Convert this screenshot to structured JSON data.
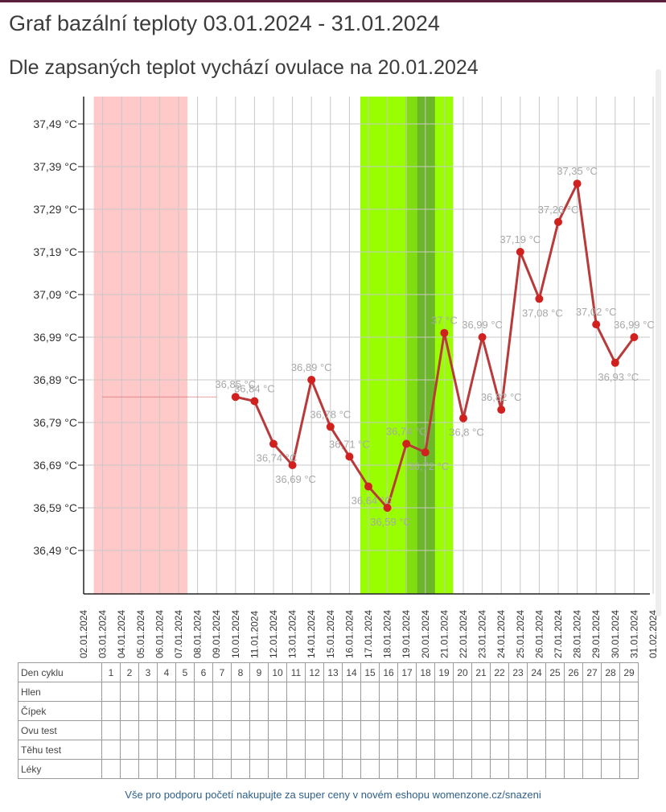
{
  "page": {
    "title": "Graf bazální teploty 03.01.2024 - 31.01.2024",
    "subtitle": "Dle zapsaných teplot vychází ovulace na 20.01.2024",
    "footer_link": "Vše pro podporu početí nakupujte za super ceny v novém eshopu womenzone.cz/snazeni"
  },
  "colors": {
    "line": "#b83a3a",
    "point": "#d0211f",
    "label": "#a8a8a8",
    "grid": "#c8c8c8",
    "axis": "#222222",
    "menstruation_band": "#ffc9c9",
    "fertile_band": "#99ff00",
    "fertile_core": "#80dd10",
    "ovulation_day": "#6cb62a",
    "ghost_line": "#cc4444"
  },
  "chart_data": {
    "type": "line",
    "title": "Graf bazální teploty 03.01.2024 - 31.01.2024",
    "x_dates": [
      "02.01.2024",
      "03.01.2024",
      "04.01.2024",
      "05.01.2024",
      "06.01.2024",
      "07.01.2024",
      "08.01.2024",
      "09.01.2024",
      "10.01.2024",
      "11.01.2024",
      "12.01.2024",
      "13.01.2024",
      "14.01.2024",
      "15.01.2024",
      "16.01.2024",
      "17.01.2024",
      "18.01.2024",
      "19.01.2024",
      "20.01.2024",
      "21.01.2024",
      "22.01.2024",
      "23.01.2024",
      "24.01.2024",
      "25.01.2024",
      "26.01.2024",
      "27.01.2024",
      "28.01.2024",
      "29.01.2024",
      "30.01.2024",
      "31.01.2024",
      "01.02.2024"
    ],
    "y_ticks": [
      "37,49 °C",
      "37,39 °C",
      "37,29 °C",
      "37,19 °C",
      "37,09 °C",
      "36,99 °C",
      "36,89 °C",
      "36,79 °C",
      "36,69 °C",
      "36,59 °C",
      "36,49 °C"
    ],
    "y_tick_values": [
      37.49,
      37.39,
      37.29,
      37.19,
      37.09,
      36.99,
      36.89,
      36.79,
      36.69,
      36.59,
      36.49
    ],
    "ylim": [
      36.38,
      37.55
    ],
    "grid": true,
    "series": [
      {
        "dates": [
          "10.01.2024",
          "11.01.2024",
          "12.01.2024",
          "13.01.2024",
          "14.01.2024",
          "15.01.2024",
          "16.01.2024",
          "17.01.2024",
          "18.01.2024",
          "19.01.2024",
          "20.01.2024",
          "21.01.2024",
          "22.01.2024",
          "23.01.2024",
          "24.01.2024",
          "25.01.2024",
          "26.01.2024",
          "27.01.2024",
          "28.01.2024",
          "29.01.2024",
          "30.01.2024",
          "31.01.2024"
        ],
        "values": [
          36.85,
          36.84,
          36.74,
          36.69,
          36.89,
          36.78,
          36.71,
          36.64,
          36.59,
          36.74,
          36.72,
          37.0,
          36.8,
          36.99,
          36.82,
          37.19,
          37.08,
          37.26,
          37.35,
          37.02,
          36.93,
          36.99
        ],
        "labels": [
          "36,85 °C",
          "36,84 °C",
          "36,74 °C",
          "36,69 °C",
          "36,89 °C",
          "36,78 °C",
          "36,71 °C",
          "36,64 °C",
          "36,59 °C",
          "36,74 °C",
          "36,72 °C",
          "37 °C",
          "36,8 °C",
          "36,99 °C",
          "36,82 °C",
          "37,19 °C",
          "37,08 °C",
          "37,26 °C",
          "37,35 °C",
          "37,02 °C",
          "36,93 °C",
          "36,99 °C"
        ]
      }
    ],
    "ghost_line": {
      "from_date": "03.01.2024",
      "to_date": "09.01.2024",
      "value": 36.85
    },
    "bands": [
      {
        "kind": "menstruation",
        "from_date": "03.01.2024",
        "to_date": "07.01.2024"
      },
      {
        "kind": "fertile",
        "from_date": "17.01.2024",
        "to_date": "21.01.2024"
      },
      {
        "kind": "fertile_core",
        "from_date": "19.01.2024",
        "to_date": "20.01.2024"
      },
      {
        "kind": "ovulation",
        "from_date": "20.01.2024",
        "to_date": "20.01.2024"
      }
    ]
  },
  "table": {
    "day_row_label": "Den cyklu",
    "days": [
      "1",
      "2",
      "3",
      "4",
      "5",
      "6",
      "7",
      "8",
      "9",
      "10",
      "11",
      "12",
      "13",
      "14",
      "15",
      "16",
      "17",
      "18",
      "19",
      "20",
      "21",
      "22",
      "23",
      "24",
      "25",
      "26",
      "27",
      "28",
      "29"
    ],
    "rows": [
      "Hlen",
      "Čípek",
      "Ovu test",
      "Těhu test",
      "Léky"
    ]
  }
}
